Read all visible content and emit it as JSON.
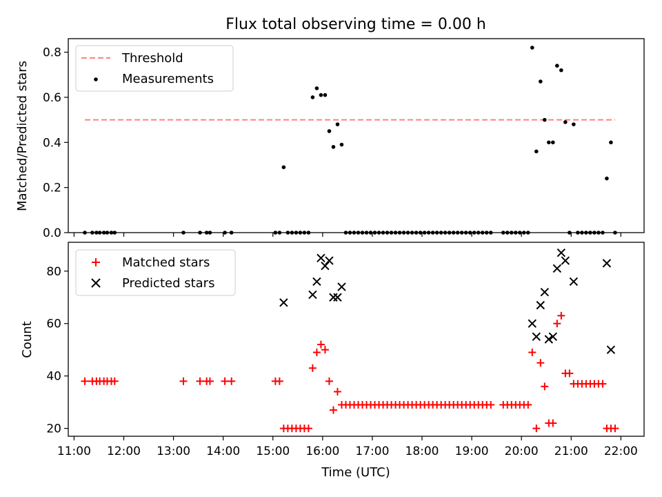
{
  "colors": {
    "threshold": "#ff8080",
    "measurements": "#000000",
    "matched": "#ff0000",
    "predicted": "#000000",
    "axes": "#000000",
    "legend_border": "#cccccc"
  },
  "chart_data": [
    {
      "type": "scatter",
      "title": "Flux total observing time = 0.00 h",
      "xlabel": "",
      "ylabel": "Matched/Predicted stars",
      "xlim": [
        "10:53",
        "22:28"
      ],
      "ylim": [
        0,
        0.86
      ],
      "yticks": [
        0.0,
        0.2,
        0.4,
        0.6,
        0.8
      ],
      "ytick_labels": [
        "0.0",
        "0.2",
        "0.4",
        "0.6",
        "0.8"
      ],
      "grid": false,
      "legend": "top-left",
      "legend_labels": [
        "Threshold",
        "Measurements"
      ],
      "threshold": {
        "name": "Threshold",
        "y": 0.5,
        "x_range": [
          "11:13",
          "21:53"
        ],
        "style": "dashed"
      },
      "series": [
        {
          "name": "Measurements",
          "marker": "dot",
          "points": [
            [
              "11:13",
              0
            ],
            [
              "11:22",
              0
            ],
            [
              "11:27",
              0
            ],
            [
              "11:31",
              0
            ],
            [
              "11:36",
              0
            ],
            [
              "11:40",
              0
            ],
            [
              "11:45",
              0
            ],
            [
              "11:49",
              0
            ],
            [
              "13:12",
              0
            ],
            [
              "13:32",
              0
            ],
            [
              "13:40",
              0
            ],
            [
              "13:44",
              0
            ],
            [
              "14:02",
              0
            ],
            [
              "14:10",
              0
            ],
            [
              "15:03",
              0
            ],
            [
              "15:08",
              0
            ],
            [
              "15:13",
              0.29
            ],
            [
              "15:18",
              0
            ],
            [
              "15:23",
              0
            ],
            [
              "15:28",
              0
            ],
            [
              "15:33",
              0
            ],
            [
              "15:38",
              0
            ],
            [
              "15:43",
              0
            ],
            [
              "15:48",
              0.6
            ],
            [
              "15:53",
              0.64
            ],
            [
              "15:58",
              0.61
            ],
            [
              "16:03",
              0.61
            ],
            [
              "16:08",
              0.45
            ],
            [
              "16:13",
              0.38
            ],
            [
              "16:18",
              0.48
            ],
            [
              "16:23",
              0.39
            ],
            [
              "16:28",
              0
            ],
            [
              "16:33",
              0
            ],
            [
              "16:38",
              0
            ],
            [
              "16:43",
              0
            ],
            [
              "16:48",
              0
            ],
            [
              "16:53",
              0
            ],
            [
              "16:58",
              0
            ],
            [
              "17:03",
              0
            ],
            [
              "17:08",
              0
            ],
            [
              "17:13",
              0
            ],
            [
              "17:18",
              0
            ],
            [
              "17:23",
              0
            ],
            [
              "17:28",
              0
            ],
            [
              "17:33",
              0
            ],
            [
              "17:38",
              0
            ],
            [
              "17:43",
              0
            ],
            [
              "17:48",
              0
            ],
            [
              "17:53",
              0
            ],
            [
              "17:58",
              0
            ],
            [
              "18:03",
              0
            ],
            [
              "18:08",
              0
            ],
            [
              "18:13",
              0
            ],
            [
              "18:18",
              0
            ],
            [
              "18:23",
              0
            ],
            [
              "18:28",
              0
            ],
            [
              "18:33",
              0
            ],
            [
              "18:38",
              0
            ],
            [
              "18:43",
              0
            ],
            [
              "18:48",
              0
            ],
            [
              "18:53",
              0
            ],
            [
              "18:58",
              0
            ],
            [
              "19:03",
              0
            ],
            [
              "19:08",
              0
            ],
            [
              "19:13",
              0
            ],
            [
              "19:18",
              0
            ],
            [
              "19:23",
              0
            ],
            [
              "19:38",
              0
            ],
            [
              "19:43",
              0
            ],
            [
              "19:48",
              0
            ],
            [
              "19:53",
              0
            ],
            [
              "19:58",
              0
            ],
            [
              "20:03",
              0
            ],
            [
              "20:08",
              0
            ],
            [
              "20:13",
              0.82
            ],
            [
              "20:18",
              0.36
            ],
            [
              "20:23",
              0.67
            ],
            [
              "20:28",
              0.5
            ],
            [
              "20:33",
              0.4
            ],
            [
              "20:38",
              0.4
            ],
            [
              "20:43",
              0.74
            ],
            [
              "20:48",
              0.72
            ],
            [
              "20:53",
              0.49
            ],
            [
              "20:58",
              0
            ],
            [
              "21:03",
              0.48
            ],
            [
              "21:08",
              0
            ],
            [
              "21:13",
              0
            ],
            [
              "21:18",
              0
            ],
            [
              "21:23",
              0
            ],
            [
              "21:28",
              0
            ],
            [
              "21:33",
              0
            ],
            [
              "21:38",
              0
            ],
            [
              "21:43",
              0.24
            ],
            [
              "21:48",
              0.4
            ],
            [
              "21:53",
              0
            ]
          ]
        }
      ]
    },
    {
      "type": "scatter",
      "title": "",
      "xlabel": "Time (UTC)",
      "ylabel": "Count",
      "xlim": [
        "10:53",
        "22:28"
      ],
      "ylim": [
        17,
        91
      ],
      "yticks": [
        20,
        40,
        60,
        80
      ],
      "ytick_labels": [
        "20",
        "40",
        "60",
        "80"
      ],
      "xticks": [
        "11:00",
        "12:00",
        "13:00",
        "14:00",
        "15:00",
        "16:00",
        "17:00",
        "18:00",
        "19:00",
        "20:00",
        "21:00",
        "22:00"
      ],
      "grid": false,
      "legend": "top-left",
      "legend_labels": [
        "Matched stars",
        "Predicted stars"
      ],
      "series": [
        {
          "name": "Matched stars",
          "marker": "plus",
          "points": [
            [
              "11:13",
              38
            ],
            [
              "11:22",
              38
            ],
            [
              "11:27",
              38
            ],
            [
              "11:31",
              38
            ],
            [
              "11:36",
              38
            ],
            [
              "11:40",
              38
            ],
            [
              "11:45",
              38
            ],
            [
              "11:49",
              38
            ],
            [
              "13:12",
              38
            ],
            [
              "13:32",
              38
            ],
            [
              "13:40",
              38
            ],
            [
              "13:44",
              38
            ],
            [
              "14:02",
              38
            ],
            [
              "14:10",
              38
            ],
            [
              "15:03",
              38
            ],
            [
              "15:08",
              38
            ],
            [
              "15:13",
              20
            ],
            [
              "15:18",
              20
            ],
            [
              "15:23",
              20
            ],
            [
              "15:28",
              20
            ],
            [
              "15:33",
              20
            ],
            [
              "15:38",
              20
            ],
            [
              "15:43",
              20
            ],
            [
              "15:48",
              43
            ],
            [
              "15:53",
              49
            ],
            [
              "15:58",
              52
            ],
            [
              "16:03",
              50
            ],
            [
              "16:08",
              38
            ],
            [
              "16:13",
              27
            ],
            [
              "16:18",
              34
            ],
            [
              "16:23",
              29
            ],
            [
              "16:28",
              29
            ],
            [
              "16:33",
              29
            ],
            [
              "16:38",
              29
            ],
            [
              "16:43",
              29
            ],
            [
              "16:48",
              29
            ],
            [
              "16:53",
              29
            ],
            [
              "16:58",
              29
            ],
            [
              "17:03",
              29
            ],
            [
              "17:08",
              29
            ],
            [
              "17:13",
              29
            ],
            [
              "17:18",
              29
            ],
            [
              "17:23",
              29
            ],
            [
              "17:28",
              29
            ],
            [
              "17:33",
              29
            ],
            [
              "17:38",
              29
            ],
            [
              "17:43",
              29
            ],
            [
              "17:48",
              29
            ],
            [
              "17:53",
              29
            ],
            [
              "17:58",
              29
            ],
            [
              "18:03",
              29
            ],
            [
              "18:08",
              29
            ],
            [
              "18:13",
              29
            ],
            [
              "18:18",
              29
            ],
            [
              "18:23",
              29
            ],
            [
              "18:28",
              29
            ],
            [
              "18:33",
              29
            ],
            [
              "18:38",
              29
            ],
            [
              "18:43",
              29
            ],
            [
              "18:48",
              29
            ],
            [
              "18:53",
              29
            ],
            [
              "18:58",
              29
            ],
            [
              "19:03",
              29
            ],
            [
              "19:08",
              29
            ],
            [
              "19:13",
              29
            ],
            [
              "19:18",
              29
            ],
            [
              "19:23",
              29
            ],
            [
              "19:38",
              29
            ],
            [
              "19:43",
              29
            ],
            [
              "19:48",
              29
            ],
            [
              "19:53",
              29
            ],
            [
              "19:58",
              29
            ],
            [
              "20:03",
              29
            ],
            [
              "20:08",
              29
            ],
            [
              "20:13",
              49
            ],
            [
              "20:18",
              20
            ],
            [
              "20:23",
              45
            ],
            [
              "20:28",
              36
            ],
            [
              "20:33",
              22
            ],
            [
              "20:38",
              22
            ],
            [
              "20:43",
              60
            ],
            [
              "20:48",
              63
            ],
            [
              "20:53",
              41
            ],
            [
              "20:58",
              41
            ],
            [
              "21:03",
              37
            ],
            [
              "21:08",
              37
            ],
            [
              "21:13",
              37
            ],
            [
              "21:18",
              37
            ],
            [
              "21:23",
              37
            ],
            [
              "21:28",
              37
            ],
            [
              "21:33",
              37
            ],
            [
              "21:38",
              37
            ],
            [
              "21:43",
              20
            ],
            [
              "21:48",
              20
            ],
            [
              "21:53",
              20
            ]
          ]
        },
        {
          "name": "Predicted stars",
          "marker": "x",
          "points": [
            [
              "15:13",
              68
            ],
            [
              "15:48",
              71
            ],
            [
              "15:53",
              76
            ],
            [
              "15:58",
              85
            ],
            [
              "16:03",
              82
            ],
            [
              "16:08",
              84
            ],
            [
              "16:13",
              70
            ],
            [
              "16:18",
              70
            ],
            [
              "16:23",
              74
            ],
            [
              "20:13",
              60
            ],
            [
              "20:18",
              55
            ],
            [
              "20:23",
              67
            ],
            [
              "20:28",
              72
            ],
            [
              "20:33",
              54
            ],
            [
              "20:38",
              55
            ],
            [
              "20:43",
              81
            ],
            [
              "20:48",
              87
            ],
            [
              "20:53",
              84
            ],
            [
              "21:03",
              76
            ],
            [
              "21:43",
              83
            ],
            [
              "21:48",
              50
            ]
          ]
        }
      ]
    }
  ]
}
